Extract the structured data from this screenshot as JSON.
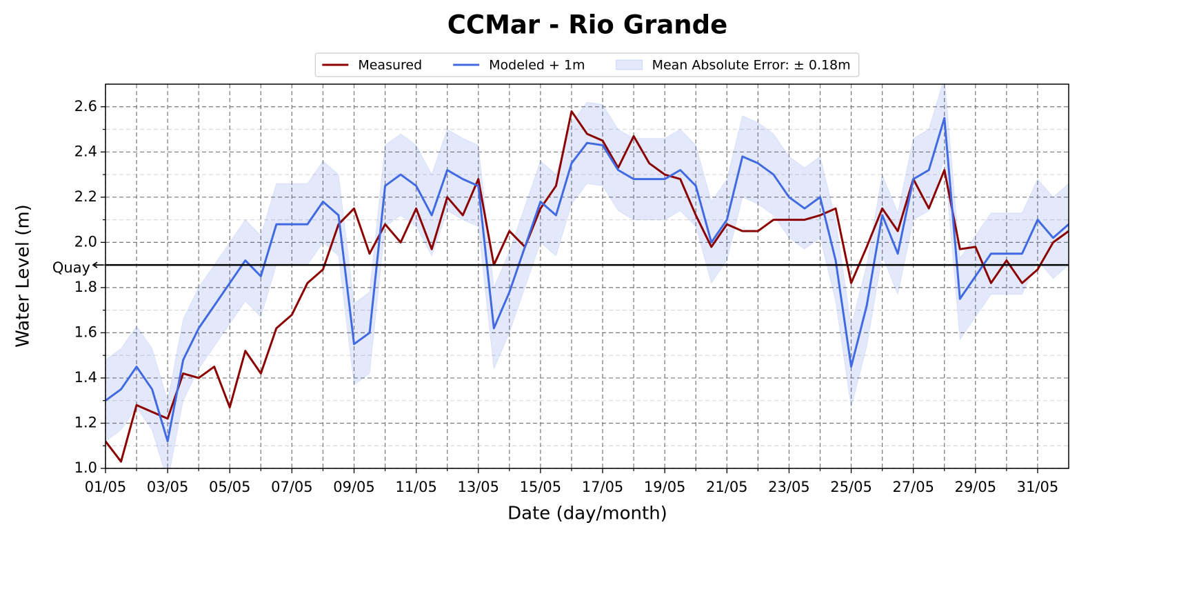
{
  "chart_data": {
    "type": "line",
    "title": "CCMar - Rio Grande",
    "xlabel": "Date (day/month)",
    "ylabel": "Water Level (m)",
    "x": [
      0,
      0.5,
      1,
      1.5,
      2,
      2.5,
      3,
      3.5,
      4,
      4.5,
      5,
      5.5,
      6,
      6.5,
      7,
      7.5,
      8,
      8.5,
      9,
      9.5,
      10,
      10.5,
      11,
      11.5,
      12,
      12.5,
      13,
      13.5,
      14,
      14.5,
      15,
      15.5,
      16,
      16.5,
      17,
      17.5,
      18,
      18.5,
      19,
      19.5,
      20,
      20.5,
      21,
      21.5,
      22,
      22.5,
      23,
      23.5,
      24,
      24.5,
      25,
      25.5,
      26,
      26.5,
      27,
      27.5,
      28,
      28.5,
      29,
      29.5,
      30,
      30.5,
      31
    ],
    "series": [
      {
        "name": "Measured",
        "color": "#8b0000",
        "values": [
          1.12,
          1.03,
          1.28,
          1.25,
          1.22,
          1.42,
          1.4,
          1.45,
          1.27,
          1.52,
          1.42,
          1.62,
          1.68,
          1.82,
          1.88,
          2.08,
          2.15,
          1.95,
          2.08,
          2.0,
          2.15,
          1.97,
          2.2,
          2.12,
          2.28,
          1.9,
          2.05,
          1.98,
          2.15,
          2.25,
          2.58,
          2.48,
          2.45,
          2.33,
          2.47,
          2.35,
          2.3,
          2.28,
          2.12,
          1.98,
          2.08,
          2.05,
          2.05,
          2.1,
          2.1,
          2.1,
          2.12,
          2.15,
          1.82,
          1.98,
          2.15,
          2.05,
          2.28,
          2.15,
          2.32,
          1.97,
          1.98,
          1.82,
          1.92,
          1.82,
          1.88,
          2.0,
          2.05
        ]
      },
      {
        "name": "Modeled + 1m",
        "color": "#4169e1",
        "values": [
          1.3,
          1.35,
          1.45,
          1.35,
          1.12,
          1.48,
          1.62,
          1.72,
          1.82,
          1.92,
          1.85,
          2.08,
          2.08,
          2.08,
          2.18,
          2.12,
          1.55,
          1.6,
          2.25,
          2.3,
          2.25,
          2.12,
          2.32,
          2.28,
          2.25,
          1.62,
          1.78,
          1.98,
          2.18,
          2.12,
          2.35,
          2.44,
          2.43,
          2.32,
          2.28,
          2.28,
          2.28,
          2.32,
          2.25,
          2.0,
          2.1,
          2.38,
          2.35,
          2.3,
          2.2,
          2.15,
          2.2,
          1.92,
          1.45,
          1.72,
          2.12,
          1.95,
          2.28,
          2.32,
          2.55,
          1.75,
          1.85,
          1.95,
          1.95,
          1.95,
          2.1,
          2.02,
          2.08
        ]
      },
      {
        "name": "Mean Absolute Error: ± 0.18m",
        "color": "#4169e1",
        "kind": "band",
        "around": 1,
        "error": 0.18
      }
    ],
    "hlines": [
      {
        "value": 1.9,
        "label": "Quay",
        "color": "#000000"
      }
    ],
    "xlim": [
      0,
      31
    ],
    "xticks": [
      {
        "value": 0,
        "label": "01/05"
      },
      {
        "value": 2,
        "label": "03/05"
      },
      {
        "value": 4,
        "label": "05/05"
      },
      {
        "value": 6,
        "label": "07/05"
      },
      {
        "value": 8,
        "label": "09/05"
      },
      {
        "value": 10,
        "label": "11/05"
      },
      {
        "value": 12,
        "label": "13/05"
      },
      {
        "value": 14,
        "label": "15/05"
      },
      {
        "value": 16,
        "label": "17/05"
      },
      {
        "value": 18,
        "label": "19/05"
      },
      {
        "value": 20,
        "label": "21/05"
      },
      {
        "value": 22,
        "label": "23/05"
      },
      {
        "value": 24,
        "label": "25/05"
      },
      {
        "value": 26,
        "label": "27/05"
      },
      {
        "value": 28,
        "label": "29/05"
      },
      {
        "value": 30,
        "label": "31/05"
      }
    ],
    "xminorticks": [
      1,
      3,
      5,
      7,
      9,
      11,
      13,
      15,
      17,
      19,
      21,
      23,
      25,
      27,
      29
    ],
    "ylim": [
      1.0,
      2.7
    ],
    "yticks": [
      {
        "value": 1,
        "label": "1.0"
      },
      1.2,
      1.4,
      1.6,
      1.8,
      {
        "value": 2,
        "label": "2.0"
      },
      2.2,
      2.4,
      2.6
    ],
    "yminorticks": [
      1.1,
      1.3,
      1.5,
      1.7,
      1.9,
      2.1,
      2.3,
      2.5
    ],
    "grid": true,
    "legend": "top"
  }
}
